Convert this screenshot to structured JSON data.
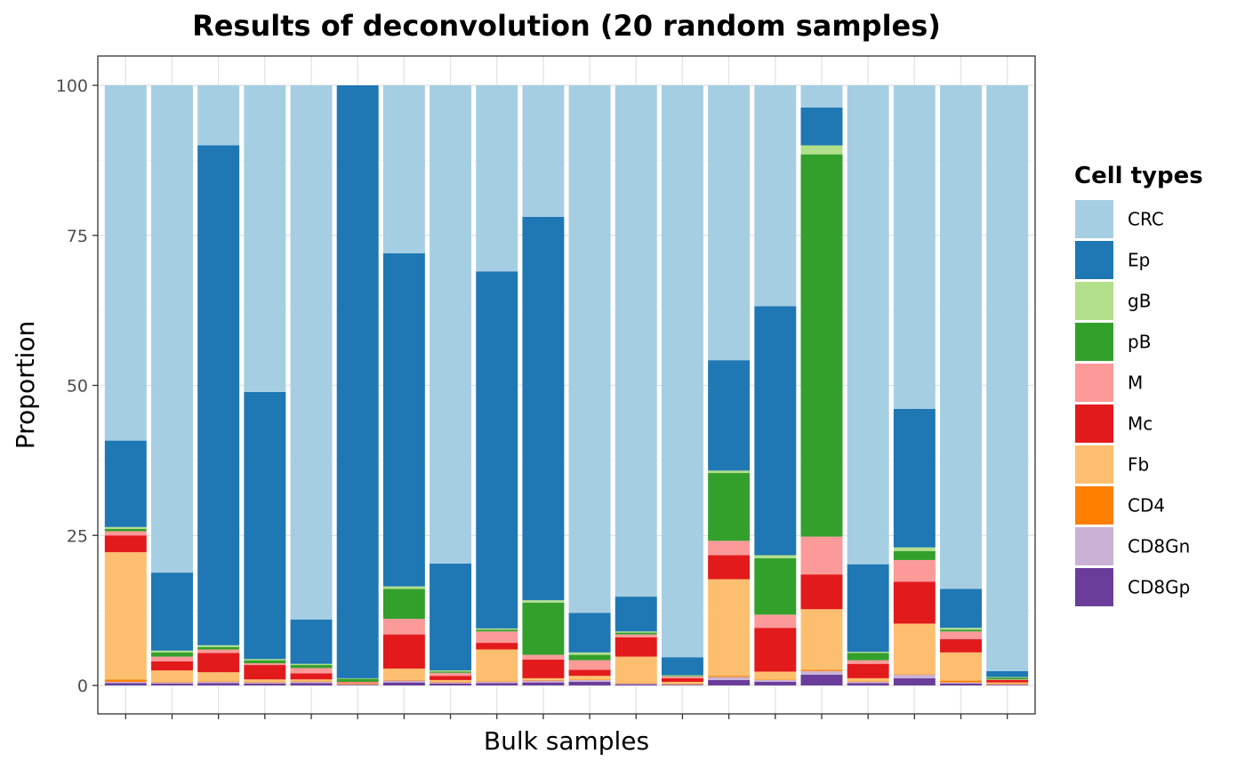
{
  "chart_data": {
    "type": "bar",
    "stacked": true,
    "title": "Results of deconvolution (20 random samples)",
    "xlabel": "Bulk samples",
    "ylabel": "Proportion",
    "ylim": [
      0,
      100
    ],
    "yticks": [
      0,
      25,
      50,
      75,
      100
    ],
    "xtick_labels_shown": false,
    "grid": true,
    "legend_title": "Cell types",
    "legend_position": "right",
    "series_colors": {
      "CRC": "#A6CEE3",
      "Ep": "#1F78B4",
      "gB": "#B2DF8A",
      "pB": "#33A02C",
      "M": "#FB9A99",
      "Mc": "#E31A1C",
      "Fb": "#FDBF6F",
      "CD4": "#FF7F00",
      "CD8Gn": "#CAB2D6",
      "CD8Gp": "#6A3D9A"
    },
    "stack_order_bottom_to_top": [
      "CD8Gp",
      "CD8Gn",
      "CD4",
      "Fb",
      "Mc",
      "M",
      "pB",
      "gB",
      "Ep",
      "CRC"
    ],
    "legend_order": [
      "CRC",
      "Ep",
      "gB",
      "pB",
      "M",
      "Mc",
      "Fb",
      "CD4",
      "CD8Gn",
      "CD8Gp"
    ],
    "samples": [
      {
        "CD8Gp": 0.4,
        "CD8Gn": 0.2,
        "CD4": 0.4,
        "Fb": 21.2,
        "Mc": 2.8,
        "M": 0.7,
        "pB": 0.4,
        "gB": 0.3,
        "Ep": 14.4,
        "CRC": 59.2
      },
      {
        "CD8Gp": 0.3,
        "CD8Gn": 0.2,
        "CD4": 0.1,
        "Fb": 1.9,
        "Mc": 1.5,
        "M": 0.8,
        "pB": 0.7,
        "gB": 0.3,
        "Ep": 13.0,
        "CRC": 81.2
      },
      {
        "CD8Gp": 0.4,
        "CD8Gn": 0.2,
        "CD4": 0.1,
        "Fb": 1.5,
        "Mc": 3.2,
        "M": 0.6,
        "pB": 0.4,
        "gB": 0.3,
        "Ep": 83.3,
        "CRC": 10.0
      },
      {
        "CD8Gp": 0.3,
        "CD8Gn": 0.2,
        "CD4": 0.1,
        "Fb": 0.4,
        "Mc": 2.4,
        "M": 0.3,
        "pB": 0.5,
        "gB": 0.2,
        "Ep": 44.5,
        "CRC": 51.1
      },
      {
        "CD8Gp": 0.4,
        "CD8Gn": 0.2,
        "CD4": 0.1,
        "Fb": 0.3,
        "Mc": 1.0,
        "M": 0.9,
        "pB": 0.5,
        "gB": 0.2,
        "Ep": 7.4,
        "CRC": 89.0
      },
      {
        "CD8Gp": 0.1,
        "CD8Gn": 0.1,
        "CD4": 0.1,
        "Fb": 0.1,
        "Mc": 0.1,
        "M": 0.1,
        "pB": 0.5,
        "gB": 0.1,
        "Ep": 98.8,
        "CRC": 0.0
      },
      {
        "CD8Gp": 0.5,
        "CD8Gn": 0.3,
        "CD4": 0.1,
        "Fb": 1.9,
        "Mc": 5.7,
        "M": 2.6,
        "pB": 5.0,
        "gB": 0.4,
        "Ep": 55.5,
        "CRC": 28.0
      },
      {
        "CD8Gp": 0.3,
        "CD8Gn": 0.2,
        "CD4": 0.1,
        "Fb": 0.3,
        "Mc": 0.7,
        "M": 0.5,
        "pB": 0.2,
        "gB": 0.2,
        "Ep": 17.8,
        "CRC": 79.7
      },
      {
        "CD8Gp": 0.4,
        "CD8Gn": 0.2,
        "CD4": 0.1,
        "Fb": 5.3,
        "Mc": 1.1,
        "M": 1.9,
        "pB": 0.3,
        "gB": 0.2,
        "Ep": 59.5,
        "CRC": 31.0
      },
      {
        "CD8Gp": 0.5,
        "CD8Gn": 0.3,
        "CD4": 0.1,
        "Fb": 0.3,
        "Mc": 3.1,
        "M": 0.8,
        "pB": 8.7,
        "gB": 0.4,
        "Ep": 63.9,
        "CRC": 21.9
      },
      {
        "CD8Gp": 0.6,
        "CD8Gn": 0.3,
        "CD4": 0.1,
        "Fb": 0.6,
        "Mc": 1.0,
        "M": 1.6,
        "pB": 0.9,
        "gB": 0.4,
        "Ep": 6.6,
        "CRC": 87.9
      },
      {
        "CD8Gp": 0.2,
        "CD8Gn": 0.1,
        "CD4": 0.1,
        "Fb": 4.4,
        "Mc": 3.2,
        "M": 0.5,
        "pB": 0.3,
        "gB": 0.2,
        "Ep": 5.8,
        "CRC": 85.2
      },
      {
        "CD8Gp": 0.1,
        "CD8Gn": 0.1,
        "CD4": 0.1,
        "Fb": 0.3,
        "Mc": 0.6,
        "M": 0.3,
        "pB": 0.1,
        "gB": 0.1,
        "Ep": 3.0,
        "CRC": 95.3
      },
      {
        "CD8Gp": 0.9,
        "CD8Gn": 0.5,
        "CD4": 0.2,
        "Fb": 16.1,
        "Mc": 4.0,
        "M": 2.4,
        "pB": 11.3,
        "gB": 0.4,
        "Ep": 18.4,
        "CRC": 45.8
      },
      {
        "CD8Gp": 0.6,
        "CD8Gn": 0.3,
        "CD4": 0.1,
        "Fb": 1.3,
        "Mc": 7.3,
        "M": 2.2,
        "pB": 9.4,
        "gB": 0.5,
        "Ep": 41.5,
        "CRC": 36.8
      },
      {
        "CD8Gp": 1.8,
        "CD8Gn": 0.6,
        "CD4": 0.2,
        "Fb": 10.1,
        "Mc": 5.8,
        "M": 6.3,
        "pB": 63.7,
        "gB": 1.5,
        "Ep": 6.3,
        "CRC": 3.7
      },
      {
        "CD8Gp": 0.4,
        "CD8Gn": 0.2,
        "CD4": 0.1,
        "Fb": 0.5,
        "Mc": 2.4,
        "M": 0.6,
        "pB": 1.2,
        "gB": 0.2,
        "Ep": 14.6,
        "CRC": 79.8
      },
      {
        "CD8Gp": 1.2,
        "CD8Gn": 0.6,
        "CD4": 0.1,
        "Fb": 8.4,
        "Mc": 7.0,
        "M": 3.6,
        "pB": 1.5,
        "gB": 0.6,
        "Ep": 23.1,
        "CRC": 53.9
      },
      {
        "CD8Gp": 0.3,
        "CD8Gn": 0.2,
        "CD4": 0.3,
        "Fb": 4.7,
        "Mc": 2.2,
        "M": 1.3,
        "pB": 0.3,
        "gB": 0.3,
        "Ep": 6.5,
        "CRC": 83.9
      },
      {
        "CD8Gp": 0.1,
        "CD8Gn": 0.1,
        "CD4": 0.1,
        "Fb": 0.2,
        "Mc": 0.4,
        "M": 0.1,
        "pB": 0.3,
        "gB": 0.1,
        "Ep": 1.0,
        "CRC": 97.6
      }
    ]
  }
}
